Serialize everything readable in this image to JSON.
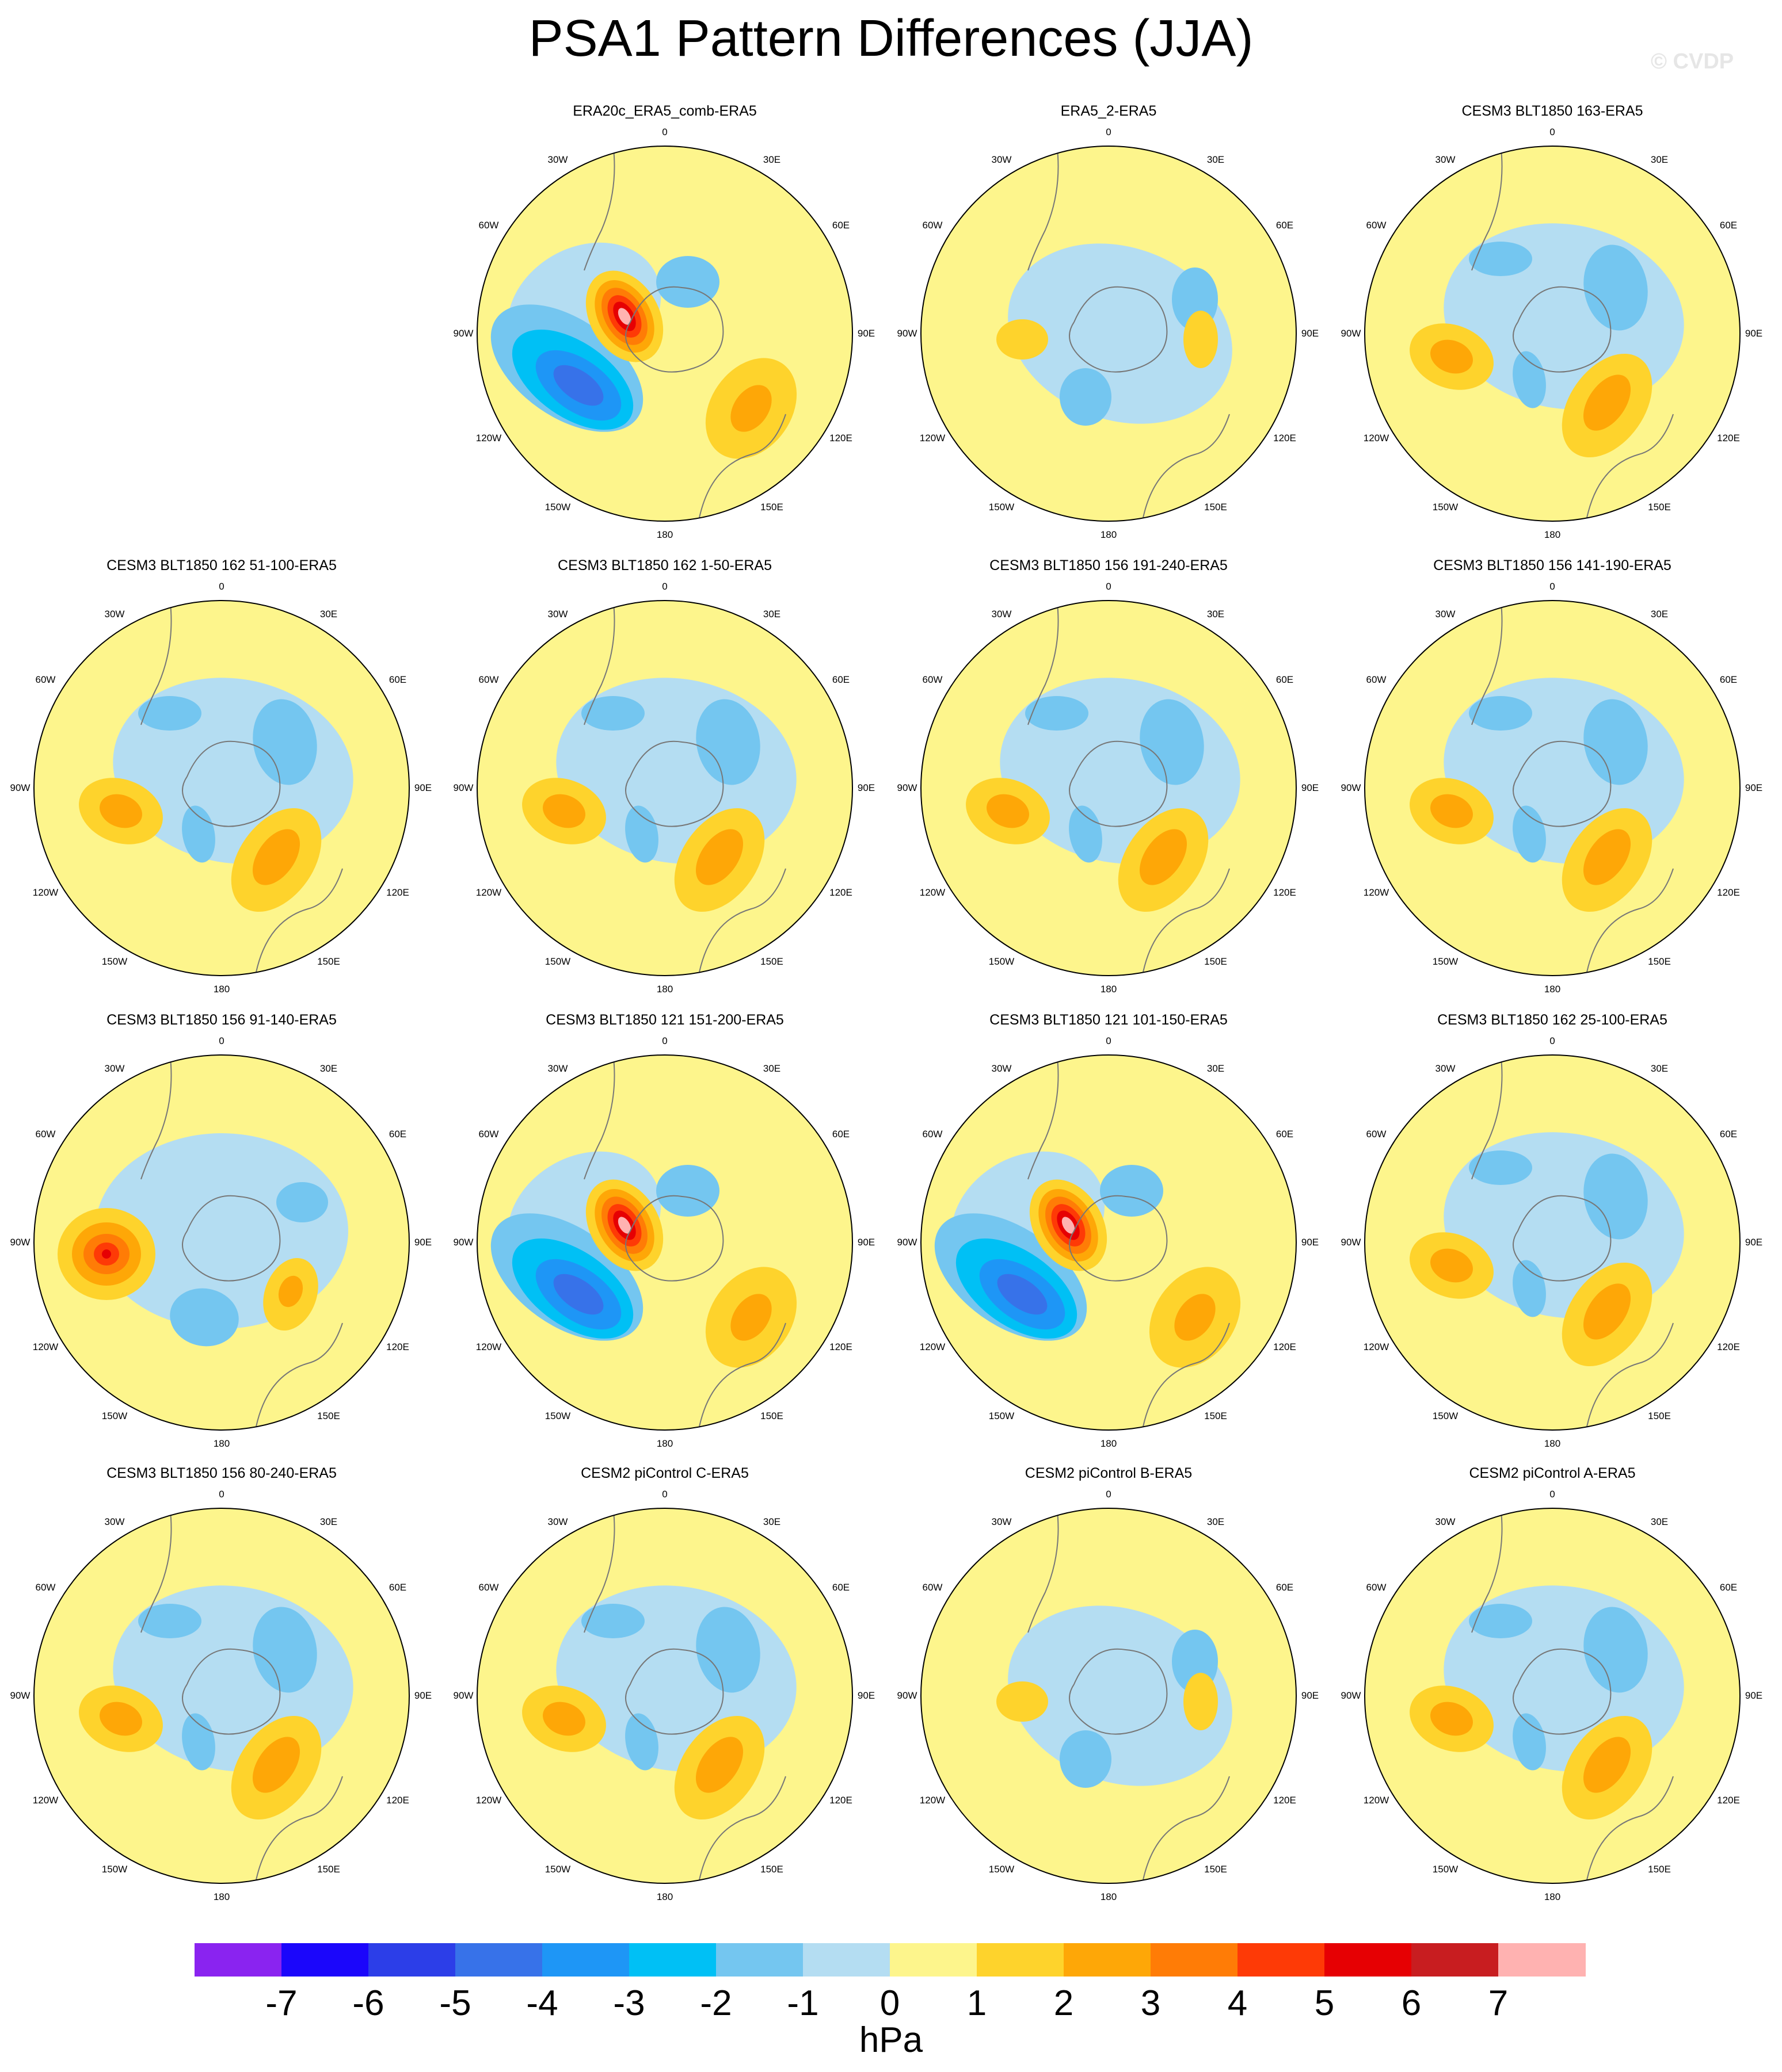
{
  "header": {
    "title": "PSA1 Pattern Differences (JJA)",
    "credit": "© CVDP"
  },
  "lon_labels": {
    "n0": "0",
    "n30e": "30E",
    "n60e": "60E",
    "n90e": "90E",
    "n120e": "120E",
    "n150e": "150E",
    "n180": "180",
    "n150w": "150W",
    "n120w": "120W",
    "n90w": "90W",
    "n60w": "60W",
    "n30w": "30W"
  },
  "panels": [
    {
      "title": "ERA20c_ERA5_comb-ERA5",
      "pattern": "strong-dipole"
    },
    {
      "title": "ERA5_2-ERA5",
      "pattern": "weak"
    },
    {
      "title": "CESM3 BLT1850 163-ERA5",
      "pattern": "moderate"
    },
    {
      "title": "CESM3 BLT1850 162 51-100-ERA5",
      "pattern": "moderate"
    },
    {
      "title": "CESM3 BLT1850 162 1-50-ERA5",
      "pattern": "moderate"
    },
    {
      "title": "CESM3 BLT1850 156 191-240-ERA5",
      "pattern": "moderate"
    },
    {
      "title": "CESM3 BLT1850 156 141-190-ERA5",
      "pattern": "moderate"
    },
    {
      "title": "CESM3 BLT1850 156 91-140-ERA5",
      "pattern": "strong-high"
    },
    {
      "title": "CESM3 BLT1850 121 151-200-ERA5",
      "pattern": "strong-dipole"
    },
    {
      "title": "CESM3 BLT1850 121 101-150-ERA5",
      "pattern": "strong-dipole"
    },
    {
      "title": "CESM3 BLT1850 162 25-100-ERA5",
      "pattern": "moderate"
    },
    {
      "title": "CESM3 BLT1850 156 80-240-ERA5",
      "pattern": "moderate"
    },
    {
      "title": "CESM2 piControl C-ERA5",
      "pattern": "moderate"
    },
    {
      "title": "CESM2 piControl B-ERA5",
      "pattern": "weak"
    },
    {
      "title": "CESM2 piControl A-ERA5",
      "pattern": "moderate"
    }
  ],
  "colorbar": {
    "units": "hPa",
    "labels": [
      "-7",
      "-6",
      "-5",
      "-4",
      "-3",
      "-2",
      "-1",
      "0",
      "1",
      "2",
      "3",
      "4",
      "5",
      "6",
      "7"
    ],
    "colors": [
      "#8a23f0",
      "#1b06fb",
      "#2c3ee8",
      "#3772e9",
      "#1e96f6",
      "#00c0f5",
      "#74c6f0",
      "#b4ddf2",
      "#fdf58c",
      "#fed32c",
      "#fea707",
      "#ff7c06",
      "#fe3a06",
      "#e60003",
      "#c81d20",
      "#ffb2b1"
    ]
  }
}
